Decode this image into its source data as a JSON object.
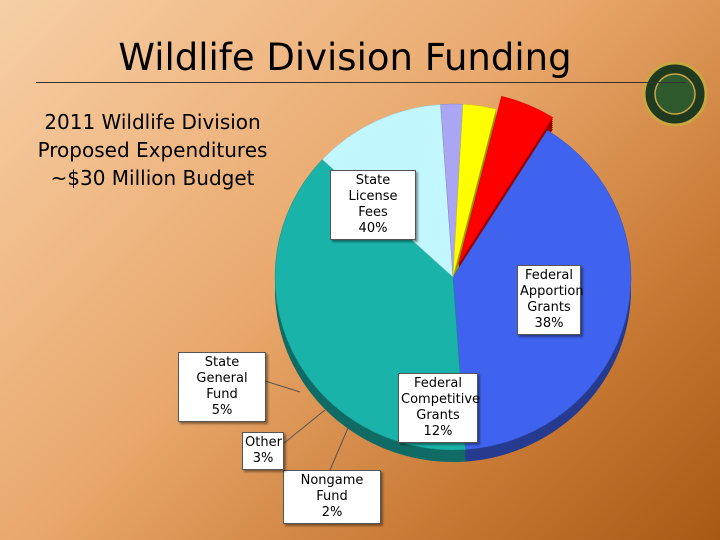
{
  "chart_data": {
    "type": "pie",
    "title": "Wildlife Division Funding",
    "subtitle": [
      "2011 Wildlife Division",
      "Proposed Expenditures",
      "~$30 Million Budget"
    ],
    "categories": [
      "State License Fees",
      "Federal Apportion Grants",
      "Federal Competitive Grants",
      "Nongame Fund",
      "Other",
      "State General Fund"
    ],
    "values": [
      40,
      38,
      12,
      2,
      3,
      5
    ],
    "value_labels": [
      "40%",
      "38%",
      "12%",
      "2%",
      "3%",
      "5%"
    ],
    "colors": [
      "#3f63ee",
      "#1ab3a9",
      "#c2f7ff",
      "#aaa6f3",
      "#ffff00",
      "#ff0000"
    ]
  }
}
